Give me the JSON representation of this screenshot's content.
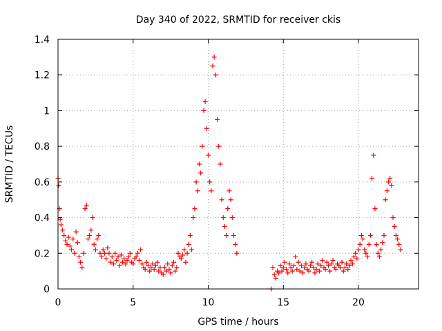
{
  "chart_data": {
    "type": "scatter",
    "title": "Day 340 of 2022, SRMTID for receiver ckis",
    "xlabel": "GPS time / hours",
    "ylabel": "SRMTID / TECUs",
    "xlim": [
      0,
      24
    ],
    "ylim": [
      0,
      1.4
    ],
    "grid": true,
    "legend": "none",
    "marker": "plus",
    "x_ticks": [
      0,
      5,
      10,
      15,
      20
    ],
    "x_tick_labels": [
      "0",
      "5",
      "10",
      "15",
      "20"
    ],
    "y_ticks": [
      0,
      0.2,
      0.4,
      0.6,
      0.8,
      1.0,
      1.2,
      1.4
    ],
    "y_tick_labels": [
      "0",
      "0.2",
      "0.4",
      "0.6",
      "0.8",
      "1",
      "1.2",
      "1.4"
    ],
    "series_color": "#ff0000",
    "series": [
      {
        "name": "SRMTID",
        "x": [
          0.0,
          0.05,
          0.1,
          0.15,
          0.2,
          0.3,
          0.4,
          0.5,
          0.6,
          0.7,
          0.8,
          0.9,
          1.0,
          1.1,
          1.2,
          1.3,
          1.4,
          1.5,
          1.6,
          1.7,
          1.8,
          1.9,
          2.0,
          2.1,
          2.2,
          2.3,
          2.4,
          2.5,
          2.6,
          2.7,
          2.8,
          2.9,
          3.0,
          3.1,
          3.2,
          3.3,
          3.4,
          3.5,
          3.6,
          3.7,
          3.8,
          3.9,
          4.0,
          4.1,
          4.2,
          4.3,
          4.4,
          4.5,
          4.6,
          4.7,
          4.8,
          4.9,
          5.0,
          5.1,
          5.2,
          5.3,
          5.4,
          5.5,
          5.6,
          5.7,
          5.8,
          5.9,
          6.0,
          6.1,
          6.2,
          6.3,
          6.4,
          6.5,
          6.6,
          6.7,
          6.8,
          6.9,
          7.0,
          7.1,
          7.2,
          7.3,
          7.4,
          7.5,
          7.6,
          7.7,
          7.8,
          7.9,
          8.0,
          8.1,
          8.2,
          8.3,
          8.4,
          8.5,
          8.6,
          8.7,
          8.8,
          8.9,
          9.0,
          9.1,
          9.2,
          9.3,
          9.4,
          9.5,
          9.6,
          9.7,
          9.8,
          9.9,
          10.0,
          10.1,
          10.2,
          10.3,
          10.4,
          10.5,
          10.6,
          10.7,
          10.8,
          10.9,
          11.0,
          11.1,
          11.2,
          11.3,
          11.4,
          11.5,
          11.6,
          11.7,
          11.8,
          11.9,
          14.2,
          14.3,
          14.4,
          14.5,
          14.6,
          14.7,
          14.8,
          14.9,
          15.0,
          15.1,
          15.2,
          15.3,
          15.4,
          15.5,
          15.6,
          15.7,
          15.8,
          15.9,
          16.0,
          16.1,
          16.2,
          16.3,
          16.4,
          16.5,
          16.6,
          16.7,
          16.8,
          16.9,
          17.0,
          17.1,
          17.2,
          17.3,
          17.4,
          17.5,
          17.6,
          17.7,
          17.8,
          17.9,
          18.0,
          18.1,
          18.2,
          18.3,
          18.4,
          18.5,
          18.6,
          18.7,
          18.8,
          18.9,
          19.0,
          19.1,
          19.2,
          19.3,
          19.4,
          19.5,
          19.6,
          19.7,
          19.8,
          19.9,
          20.0,
          20.1,
          20.2,
          20.3,
          20.4,
          20.5,
          20.6,
          20.7,
          20.8,
          20.9,
          21.0,
          21.1,
          21.2,
          21.3,
          21.4,
          21.5,
          21.6,
          21.7,
          21.8,
          21.9,
          22.0,
          22.1,
          22.2,
          22.3,
          22.4,
          22.5,
          22.6,
          22.7,
          22.8
        ],
        "y": [
          0.62,
          0.58,
          0.45,
          0.39,
          0.36,
          0.33,
          0.3,
          0.27,
          0.25,
          0.29,
          0.24,
          0.22,
          0.28,
          0.2,
          0.32,
          0.26,
          0.18,
          0.15,
          0.12,
          0.2,
          0.45,
          0.47,
          0.28,
          0.3,
          0.33,
          0.4,
          0.25,
          0.22,
          0.28,
          0.3,
          0.2,
          0.18,
          0.22,
          0.2,
          0.17,
          0.23,
          0.2,
          0.15,
          0.18,
          0.14,
          0.2,
          0.16,
          0.18,
          0.13,
          0.19,
          0.15,
          0.17,
          0.14,
          0.16,
          0.18,
          0.2,
          0.15,
          0.14,
          0.17,
          0.18,
          0.2,
          0.16,
          0.22,
          0.14,
          0.12,
          0.11,
          0.15,
          0.13,
          0.1,
          0.12,
          0.14,
          0.11,
          0.13,
          0.15,
          0.1,
          0.12,
          0.09,
          0.08,
          0.12,
          0.1,
          0.14,
          0.11,
          0.09,
          0.13,
          0.15,
          0.1,
          0.12,
          0.2,
          0.18,
          0.17,
          0.19,
          0.22,
          0.15,
          0.2,
          0.25,
          0.3,
          0.22,
          0.4,
          0.45,
          0.6,
          0.55,
          0.7,
          0.65,
          0.8,
          1.0,
          1.05,
          0.9,
          0.75,
          0.6,
          0.55,
          1.25,
          1.3,
          1.2,
          0.95,
          0.8,
          0.7,
          0.5,
          0.4,
          0.35,
          0.3,
          0.45,
          0.55,
          0.5,
          0.4,
          0.3,
          0.25,
          0.2,
          0.0,
          0.12,
          0.08,
          0.06,
          0.1,
          0.09,
          0.13,
          0.1,
          0.12,
          0.15,
          0.11,
          0.09,
          0.14,
          0.12,
          0.1,
          0.13,
          0.18,
          0.11,
          0.15,
          0.1,
          0.13,
          0.09,
          0.12,
          0.14,
          0.11,
          0.1,
          0.13,
          0.15,
          0.12,
          0.09,
          0.11,
          0.14,
          0.1,
          0.13,
          0.16,
          0.12,
          0.11,
          0.15,
          0.13,
          0.1,
          0.14,
          0.16,
          0.12,
          0.11,
          0.14,
          0.13,
          0.12,
          0.15,
          0.1,
          0.12,
          0.14,
          0.11,
          0.13,
          0.16,
          0.14,
          0.18,
          0.2,
          0.17,
          0.22,
          0.25,
          0.3,
          0.28,
          0.22,
          0.2,
          0.18,
          0.25,
          0.3,
          0.62,
          0.75,
          0.45,
          0.25,
          0.2,
          0.18,
          0.22,
          0.26,
          0.3,
          0.5,
          0.55,
          0.6,
          0.62,
          0.58,
          0.4,
          0.35,
          0.3,
          0.28,
          0.25,
          0.22
        ]
      }
    ]
  }
}
